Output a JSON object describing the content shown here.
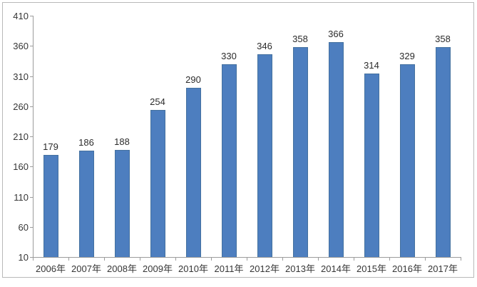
{
  "chart_data": {
    "type": "bar",
    "title": "",
    "xlabel": "",
    "ylabel": "",
    "categories": [
      "2006年",
      "2007年",
      "2008年",
      "2009年",
      "2010年",
      "2011年",
      "2012年",
      "2013年",
      "2014年",
      "2015年",
      "2016年",
      "2017年"
    ],
    "values": [
      179,
      186,
      188,
      254,
      290,
      330,
      346,
      358,
      366,
      314,
      329,
      358
    ],
    "data_labels_shown": true,
    "ylim": [
      10,
      410
    ],
    "yticks": [
      10,
      60,
      110,
      160,
      210,
      260,
      310,
      360,
      410
    ],
    "grid": false,
    "legend": "none",
    "colors": {
      "bar_fill": "#4d7ebf",
      "bar_edge": "#44719f",
      "axis_line": "#9c9c9c",
      "tick_text": "#363636",
      "label_text": "#2b2b2b",
      "frame_border": "#b9b9b9",
      "background": "#ffffff"
    }
  }
}
